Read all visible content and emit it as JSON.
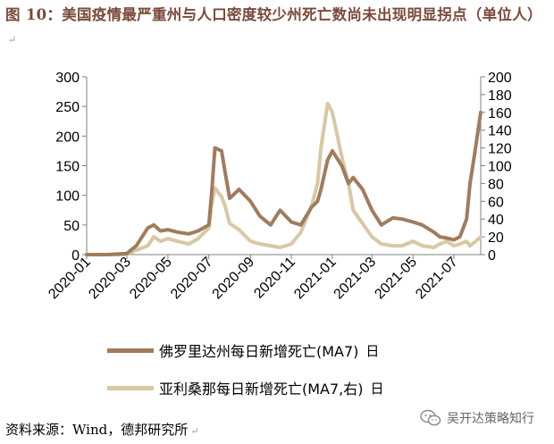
{
  "title": {
    "text": "图 10：美国疫情最严重州与人口密度较少州死亡数尚未出现明显拐点（单位人）",
    "mark": "↵"
  },
  "legend": {
    "series1": {
      "label": "佛罗里达州每日新增死亡(MA7)",
      "extra": "日"
    },
    "series2": {
      "label": "亚利桑那每日新增死亡(MA7,右)",
      "extra": "日"
    }
  },
  "footer": {
    "text": "资料来源：Wind，德邦研究所",
    "mark": "↵"
  },
  "watermark": {
    "text": "吴开达策略知行",
    "icon": "wechat-icon"
  },
  "chart_data": {
    "type": "line",
    "x_dates": [
      "2020-01-01",
      "2020-02-01",
      "2020-03-01",
      "2020-03-15",
      "2020-04-01",
      "2020-04-10",
      "2020-04-20",
      "2020-05-01",
      "2020-05-15",
      "2020-06-01",
      "2020-06-15",
      "2020-07-01",
      "2020-07-05",
      "2020-07-10",
      "2020-07-20",
      "2020-07-25",
      "2020-08-01",
      "2020-08-15",
      "2020-09-01",
      "2020-09-15",
      "2020-10-01",
      "2020-10-15",
      "2020-11-01",
      "2020-11-15",
      "2020-12-01",
      "2020-12-10",
      "2020-12-15",
      "2020-12-25",
      "2021-01-01",
      "2021-01-15",
      "2021-01-25",
      "2021-02-01",
      "2021-02-15",
      "2021-03-01",
      "2021-03-15",
      "2021-04-01",
      "2021-04-15",
      "2021-05-01",
      "2021-05-15",
      "2021-06-01",
      "2021-06-10",
      "2021-06-20",
      "2021-07-01",
      "2021-07-10",
      "2021-07-20",
      "2021-07-25",
      "2021-08-01",
      "2021-08-10"
    ],
    "series": [
      {
        "name": "佛罗里达州每日新增死亡(MA7)",
        "axis": "left",
        "color": "#a07c5e",
        "values": [
          0,
          0,
          2,
          15,
          45,
          50,
          40,
          42,
          38,
          35,
          40,
          50,
          100,
          180,
          175,
          140,
          95,
          110,
          90,
          65,
          50,
          75,
          55,
          50,
          80,
          90,
          110,
          160,
          175,
          150,
          120,
          130,
          110,
          75,
          50,
          62,
          60,
          55,
          50,
          38,
          30,
          28,
          25,
          30,
          60,
          120,
          170,
          240
        ]
      },
      {
        "name": "亚利桑那每日新增死亡(MA7,右)",
        "axis": "right",
        "color": "#d8c8a4",
        "values": [
          0,
          0,
          0,
          5,
          10,
          20,
          15,
          18,
          15,
          12,
          18,
          30,
          55,
          75,
          65,
          55,
          35,
          28,
          15,
          12,
          10,
          8,
          12,
          25,
          55,
          80,
          120,
          170,
          160,
          110,
          80,
          50,
          35,
          20,
          12,
          10,
          10,
          15,
          10,
          8,
          12,
          15,
          10,
          12,
          15,
          10,
          14,
          20
        ]
      }
    ],
    "x_ticks": [
      "2020-01",
      "2020-03",
      "2020-05",
      "2020-07",
      "2020-09",
      "2020-11",
      "2021-01",
      "2021-03",
      "2021-05",
      "2021-07"
    ],
    "ylim_left": [
      0,
      300
    ],
    "yticks_left": [
      0,
      50,
      100,
      150,
      200,
      250,
      300
    ],
    "ylim_right": [
      0,
      200
    ],
    "yticks_right": [
      0,
      20,
      40,
      60,
      80,
      100,
      120,
      140,
      160,
      180,
      200
    ],
    "grid": false,
    "legend_position": "bottom"
  }
}
